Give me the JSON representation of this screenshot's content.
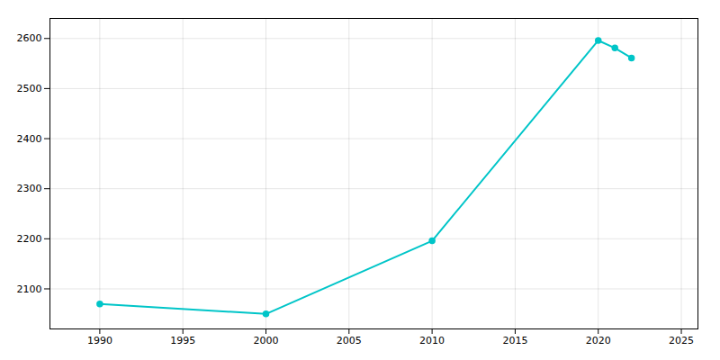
{
  "chart_data": {
    "type": "line",
    "x": [
      1990,
      2000,
      2010,
      2020,
      2021,
      2022
    ],
    "values": [
      2070,
      2050,
      2196,
      2596,
      2581,
      2561
    ],
    "color": "#00c5c8",
    "marker": "circle",
    "xlim": [
      1987,
      2026
    ],
    "ylim": [
      2020,
      2640
    ],
    "xticks": [
      1990,
      1995,
      2000,
      2005,
      2010,
      2015,
      2020,
      2025
    ],
    "yticks": [
      2100,
      2200,
      2300,
      2400,
      2500,
      2600
    ],
    "grid": true
  }
}
